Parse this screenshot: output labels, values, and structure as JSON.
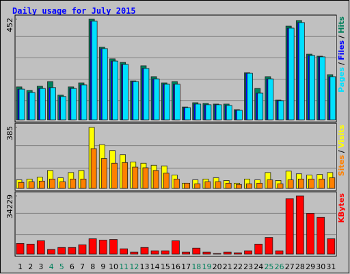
{
  "title": "Daily usage for July 2015",
  "legend_separator": "/",
  "chart_data": [
    {
      "type": "bar",
      "categories": [
        "1",
        "2",
        "3",
        "4",
        "5",
        "6",
        "7",
        "8",
        "9",
        "10",
        "11",
        "12",
        "13",
        "14",
        "15",
        "16",
        "17",
        "18",
        "19",
        "20",
        "21",
        "22",
        "23",
        "24",
        "25",
        "26",
        "27",
        "28",
        "29",
        "30",
        "31"
      ],
      "category_colors": [
        "#000000",
        "#000000",
        "#000000",
        "#00805c",
        "#00805c",
        "#000000",
        "#000000",
        "#000000",
        "#000000",
        "#000000",
        "#00805c",
        "#00805c",
        "#000000",
        "#000000",
        "#000000",
        "#000000",
        "#000000",
        "#00805c",
        "#00805c",
        "#000000",
        "#000000",
        "#000000",
        "#000000",
        "#000000",
        "#00805c",
        "#00805c",
        "#000000",
        "#000000",
        "#000000",
        "#000000",
        "#000000"
      ],
      "ylim": [
        0,
        452
      ],
      "yticks": [
        452
      ],
      "series": [
        {
          "name": "Hits",
          "color": "#00805c",
          "values": [
            148,
            132,
            151,
            172,
            111,
            148,
            166,
            452,
            326,
            274,
            258,
            175,
            243,
            194,
            166,
            172,
            58,
            77,
            74,
            71,
            71,
            46,
            212,
            141,
            194,
            89,
            421,
            446,
            295,
            286,
            203
          ]
        },
        {
          "name": "Files",
          "color": "#0000ff",
          "values": [
            138,
            123,
            141,
            145,
            105,
            141,
            157,
            443,
            320,
            264,
            249,
            172,
            231,
            184,
            160,
            160,
            55,
            71,
            68,
            68,
            65,
            43,
            209,
            120,
            184,
            86,
            412,
            437,
            289,
            283,
            194
          ]
        },
        {
          "name": "Pages",
          "color": "#00e0ff",
          "values": [
            138,
            123,
            141,
            145,
            105,
            141,
            157,
            443,
            320,
            264,
            249,
            172,
            231,
            184,
            160,
            160,
            55,
            71,
            68,
            68,
            65,
            43,
            209,
            120,
            184,
            86,
            412,
            437,
            289,
            283,
            194
          ]
        }
      ]
    },
    {
      "type": "bar",
      "ylim": [
        0,
        385
      ],
      "yticks": [
        385
      ],
      "series": [
        {
          "name": "Visits",
          "color": "#ffff00",
          "values": [
            54,
            59,
            71,
            113,
            67,
            100,
            113,
            385,
            276,
            239,
            213,
            167,
            159,
            146,
            142,
            84,
            33,
            54,
            59,
            67,
            50,
            33,
            59,
            54,
            100,
            50,
            109,
            92,
            84,
            88,
            100
          ]
        },
        {
          "name": "Sites",
          "color": "#ff8000",
          "values": [
            38,
            42,
            46,
            59,
            42,
            59,
            59,
            251,
            188,
            159,
            163,
            134,
            130,
            113,
            96,
            59,
            33,
            29,
            42,
            42,
            33,
            25,
            29,
            33,
            54,
            29,
            54,
            59,
            59,
            59,
            67
          ]
        }
      ]
    },
    {
      "type": "bar",
      "ylim": [
        0,
        34229
      ],
      "yticks": [
        34229
      ],
      "series": [
        {
          "name": "KBytes",
          "color": "#ff0000",
          "values": [
            6295,
            5900,
            7870,
            2750,
            3930,
            3930,
            5510,
            9050,
            8260,
            8650,
            3150,
            1180,
            3930,
            1970,
            1970,
            7870,
            1180,
            3540,
            1180,
            390,
            1180,
            790,
            1970,
            5900,
            9830,
            1970,
            32650,
            34229,
            24000,
            21640,
            9050
          ]
        }
      ]
    }
  ]
}
